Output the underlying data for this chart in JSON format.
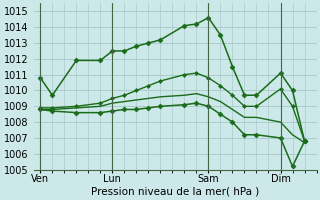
{
  "title": "Pression niveau de la mer( hPa )",
  "bg_color": "#cce8e8",
  "grid_color": "#aacccc",
  "line_color": "#1a6b1a",
  "ylim": [
    1005,
    1015.5
  ],
  "yticks": [
    1005,
    1006,
    1007,
    1008,
    1009,
    1010,
    1011,
    1012,
    1013,
    1014,
    1015
  ],
  "xtick_labels": [
    "Ven",
    "Lun",
    "Sam",
    "Dim"
  ],
  "xtick_positions": [
    0,
    6,
    14,
    20
  ],
  "vline_positions": [
    0,
    6,
    14,
    20
  ],
  "xlim": [
    -0.5,
    23
  ],
  "series": [
    {
      "x": [
        0,
        1,
        3,
        5,
        6,
        7,
        8,
        9,
        10,
        12,
        13,
        14,
        15,
        16,
        17,
        18,
        20,
        21,
        22
      ],
      "y": [
        1010.8,
        1009.7,
        1011.9,
        1011.9,
        1012.5,
        1012.5,
        1012.8,
        1013.0,
        1013.2,
        1014.1,
        1014.2,
        1014.6,
        1013.5,
        1011.5,
        1009.7,
        1009.7,
        1011.1,
        1010.0,
        1006.8
      ],
      "marker": "D",
      "markersize": 2.5,
      "linewidth": 1.1
    },
    {
      "x": [
        0,
        1,
        3,
        5,
        6,
        7,
        8,
        9,
        10,
        12,
        13,
        14,
        15,
        16,
        17,
        18,
        20,
        21,
        22
      ],
      "y": [
        1008.9,
        1008.9,
        1009.0,
        1009.2,
        1009.5,
        1009.7,
        1010.0,
        1010.3,
        1010.6,
        1011.0,
        1011.1,
        1010.8,
        1010.3,
        1009.7,
        1009.0,
        1009.0,
        1010.1,
        1009.0,
        1006.8
      ],
      "marker": "D",
      "markersize": 2.0,
      "linewidth": 1.0
    },
    {
      "x": [
        0,
        1,
        3,
        5,
        6,
        7,
        8,
        9,
        10,
        12,
        13,
        14,
        15,
        16,
        17,
        18,
        20,
        21,
        22
      ],
      "y": [
        1008.8,
        1008.8,
        1008.9,
        1009.0,
        1009.2,
        1009.3,
        1009.4,
        1009.5,
        1009.6,
        1009.7,
        1009.8,
        1009.6,
        1009.3,
        1008.8,
        1008.3,
        1008.3,
        1008.0,
        1007.2,
        1006.7
      ],
      "marker": null,
      "markersize": 0,
      "linewidth": 1.0
    },
    {
      "x": [
        0,
        1,
        3,
        5,
        6,
        7,
        8,
        9,
        10,
        12,
        13,
        14,
        15,
        16,
        17,
        18,
        20,
        21,
        22
      ],
      "y": [
        1008.8,
        1008.7,
        1008.6,
        1008.6,
        1008.7,
        1008.8,
        1008.8,
        1008.9,
        1009.0,
        1009.1,
        1009.2,
        1009.0,
        1008.5,
        1008.0,
        1007.2,
        1007.2,
        1007.0,
        1005.2,
        1006.8
      ],
      "marker": "D",
      "markersize": 2.5,
      "linewidth": 1.1
    }
  ]
}
